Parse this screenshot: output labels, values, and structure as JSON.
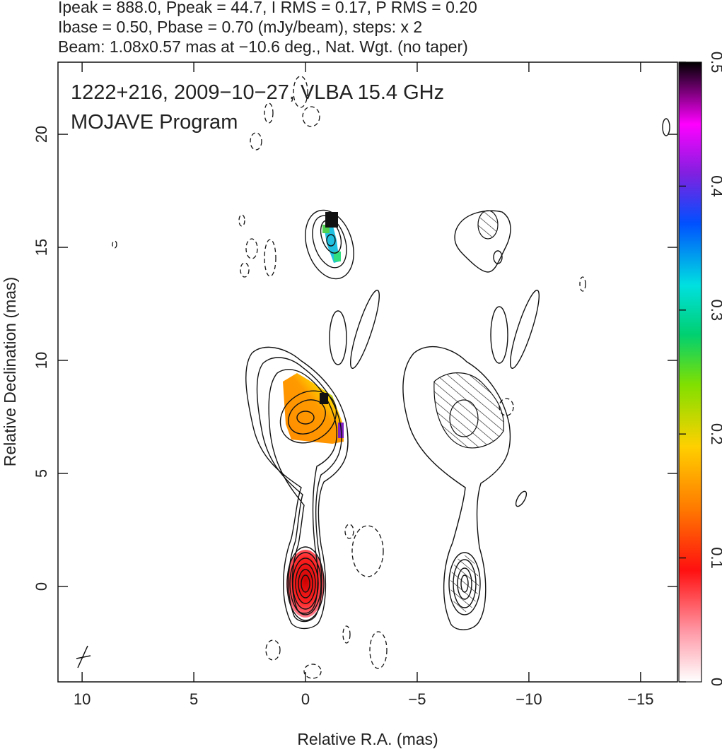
{
  "header": {
    "lines": [
      "Ipeak = 888.0, Ppeak = 44.7, I RMS = 0.17, P RMS = 0.20",
      "Ibase = 0.50, Pbase = 0.70 (mJy/beam), steps: x 2",
      "Beam: 1.08x0.57 mas at −10.6 deg., Nat. Wgt. (no taper)"
    ]
  },
  "chart_data": {
    "type": "map",
    "title": "1222+216, 2009−10−27, VLBA 15.4 GHz",
    "subtitle": "MOJAVE Program",
    "x_label": "Relative R.A. (mas)",
    "y_label": "Relative Declination (mas)",
    "xlim": [
      11.08,
      -16.65
    ],
    "ylim": [
      -4.22,
      23.19
    ],
    "xticks": [
      10,
      5,
      0,
      {
        "value": -5,
        "label": "−5"
      },
      {
        "value": -10,
        "label": "−10"
      },
      {
        "value": -15,
        "label": "−15"
      }
    ],
    "yticks": [
      0,
      5,
      10,
      15,
      20
    ],
    "colorbar": {
      "lim": [
        0,
        0.5
      ],
      "ticks": [
        0,
        0.1,
        0.2,
        0.3,
        0.4,
        0.5
      ]
    }
  }
}
